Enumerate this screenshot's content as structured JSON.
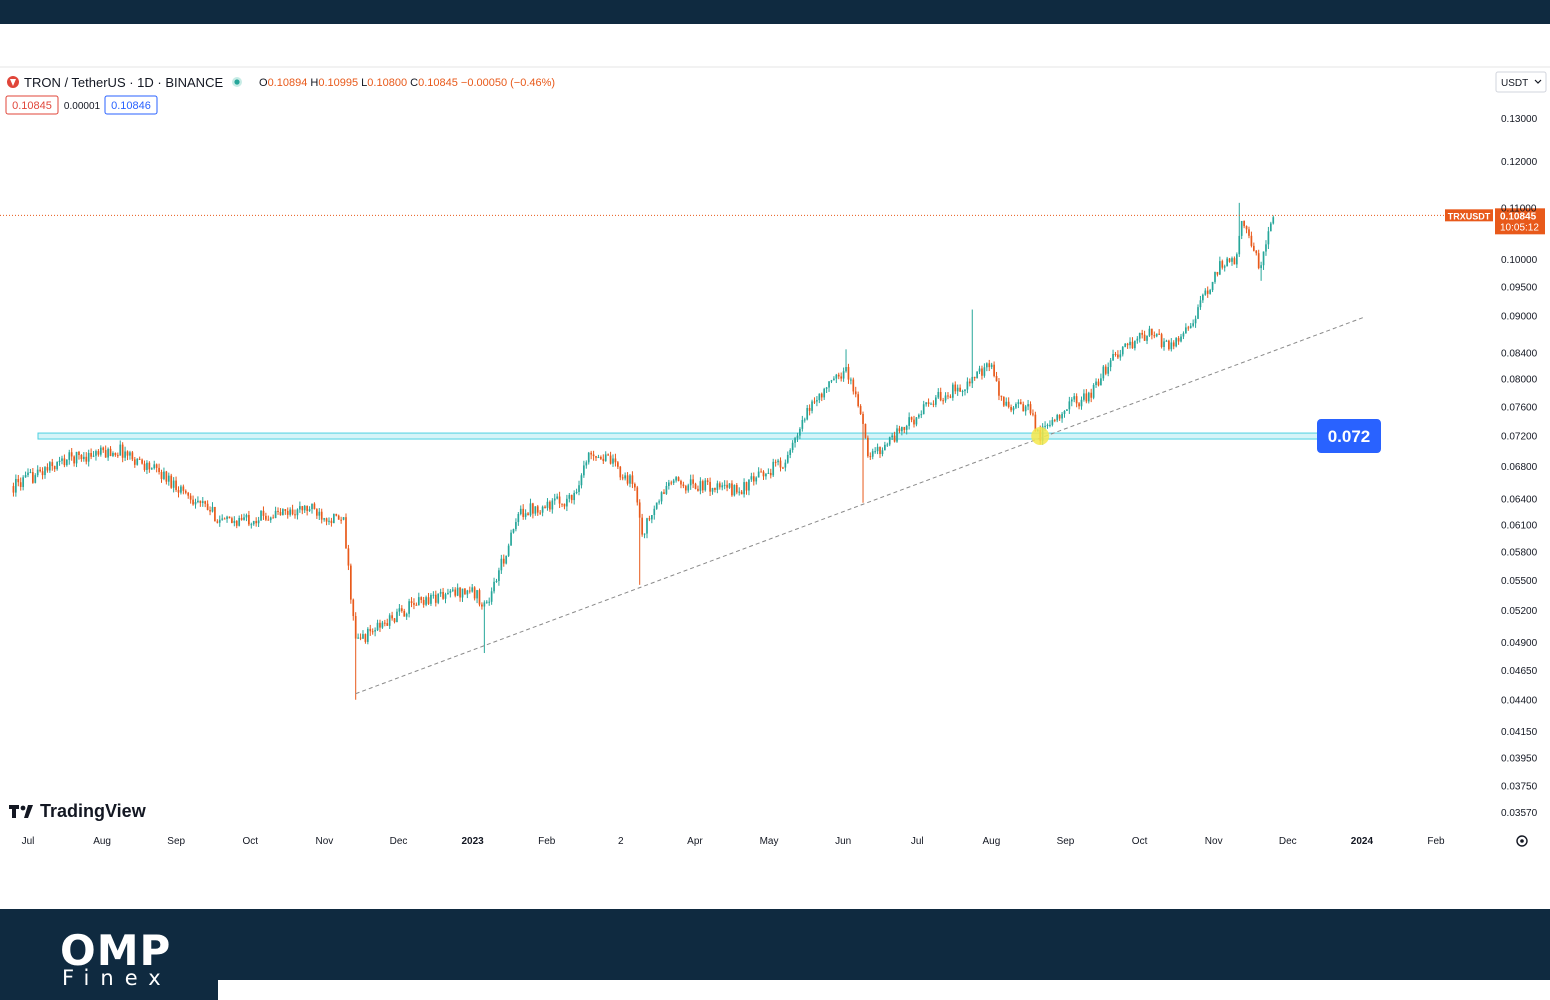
{
  "header": {
    "symbol": "TRON / TetherUS · 1D · BINANCE",
    "ohlc": [
      {
        "k": "O",
        "v": "0.10894"
      },
      {
        "k": "H",
        "v": "0.10995"
      },
      {
        "k": "L",
        "v": "0.10800"
      },
      {
        "k": "C",
        "v": "0.10845"
      }
    ],
    "change": "−0.00050 (−0.46%)",
    "sell_price": "0.10845",
    "spread": "0.00001",
    "buy_price": "0.10846",
    "currency": "USDT"
  },
  "ticker": {
    "name": "TRXUSDT",
    "price": "0.10845",
    "countdown": "10:05:12"
  },
  "annotation_label": "0.072",
  "watermark": "TradingView",
  "brand": {
    "name": "OMP",
    "sub": "Finex"
  },
  "colors": {
    "up": "#26a69a",
    "down": "#e8591a",
    "accent": "#2962ff",
    "band": "#0f2a40",
    "zone": "#b2ebf2",
    "marker": "#f5e84a"
  },
  "chart_data": {
    "type": "candlestick",
    "price_axis": {
      "labels": [
        "0.13000",
        "0.12000",
        "0.11000",
        "0.10000",
        "0.09500",
        "0.09000",
        "0.08400",
        "0.08000",
        "0.07600",
        "0.07200",
        "0.06800",
        "0.06400",
        "0.06100",
        "0.05800",
        "0.05500",
        "0.05200",
        "0.04900",
        "0.04650",
        "0.04400",
        "0.04150",
        "0.03950",
        "0.03750",
        "0.03570"
      ],
      "range": [
        0.035,
        0.134
      ],
      "scale": "log"
    },
    "time_axis": [
      "Jul",
      "Aug",
      "Sep",
      "Oct",
      "Nov",
      "Dec",
      "2023",
      "Feb",
      "2",
      "Apr",
      "May",
      "Jun",
      "Jul",
      "Aug",
      "Sep",
      "Oct",
      "Nov",
      "Dec",
      "2024",
      "Feb"
    ],
    "series": [
      {
        "keypoints": [
          {
            "t": "2022-06-25",
            "price": 0.0655
          },
          {
            "t": "2022-07-18",
            "price": 0.069
          },
          {
            "t": "2022-08-08",
            "price": 0.07
          },
          {
            "t": "2022-08-25",
            "price": 0.067
          },
          {
            "t": "2022-09-20",
            "price": 0.0612
          },
          {
            "t": "2022-10-25",
            "price": 0.0628
          },
          {
            "t": "2022-11-08",
            "price": 0.0612
          },
          {
            "t": "2022-11-13",
            "price": 0.049
          },
          {
            "t": "2022-12-10",
            "price": 0.053
          },
          {
            "t": "2022-12-30",
            "price": 0.054
          },
          {
            "t": "2023-01-06",
            "price": 0.0525
          },
          {
            "t": "2023-01-20",
            "price": 0.0625
          },
          {
            "t": "2023-02-10",
            "price": 0.064
          },
          {
            "t": "2023-02-18",
            "price": 0.07
          },
          {
            "t": "2023-02-26",
            "price": 0.0685
          },
          {
            "t": "2023-03-08",
            "price": 0.0655
          },
          {
            "t": "2023-03-11",
            "price": 0.06
          },
          {
            "t": "2023-03-22",
            "price": 0.066
          },
          {
            "t": "2023-04-20",
            "price": 0.065
          },
          {
            "t": "2023-05-10",
            "price": 0.069
          },
          {
            "t": "2023-05-20",
            "price": 0.0765
          },
          {
            "t": "2023-06-03",
            "price": 0.0815
          },
          {
            "t": "2023-06-09",
            "price": 0.0755
          },
          {
            "t": "2023-06-12",
            "price": 0.069
          },
          {
            "t": "2023-06-25",
            "price": 0.0725
          },
          {
            "t": "2023-07-10",
            "price": 0.077
          },
          {
            "t": "2023-07-24",
            "price": 0.0795
          },
          {
            "t": "2023-08-02",
            "price": 0.082
          },
          {
            "t": "2023-08-06",
            "price": 0.0765
          },
          {
            "t": "2023-08-17",
            "price": 0.0755
          },
          {
            "t": "2023-08-22",
            "price": 0.072
          },
          {
            "t": "2023-09-01",
            "price": 0.076
          },
          {
            "t": "2023-09-12",
            "price": 0.0775
          },
          {
            "t": "2023-09-20",
            "price": 0.083
          },
          {
            "t": "2023-10-05",
            "price": 0.087
          },
          {
            "t": "2023-10-15",
            "price": 0.085
          },
          {
            "t": "2023-10-25",
            "price": 0.09
          },
          {
            "t": "2023-11-05",
            "price": 0.0995
          },
          {
            "t": "2023-11-10",
            "price": 0.099
          },
          {
            "t": "2023-11-13",
            "price": 0.108
          },
          {
            "t": "2023-11-18",
            "price": 0.102
          },
          {
            "t": "2023-11-21",
            "price": 0.098
          },
          {
            "t": "2023-11-23",
            "price": 0.103
          },
          {
            "t": "2023-11-26",
            "price": 0.1085
          }
        ],
        "wick_extremes": [
          {
            "t": "2022-11-13",
            "price": 0.044
          },
          {
            "t": "2023-01-05",
            "price": 0.048
          },
          {
            "t": "2023-03-10",
            "price": 0.0545
          },
          {
            "t": "2023-06-03",
            "price": 0.0845
          },
          {
            "t": "2023-06-10",
            "price": 0.0635
          },
          {
            "t": "2023-07-25",
            "price": 0.091
          },
          {
            "t": "2023-11-12",
            "price": 0.111
          },
          {
            "t": "2023-11-21",
            "price": 0.096
          }
        ]
      }
    ],
    "support_zone": {
      "low": 0.0715,
      "high": 0.0723,
      "label": "0.072"
    },
    "trendline": [
      {
        "t": "2022-11-13",
        "price": 0.0445
      },
      {
        "t": "2024-01-03",
        "price": 0.0898
      }
    ],
    "last_price": 0.10845
  }
}
